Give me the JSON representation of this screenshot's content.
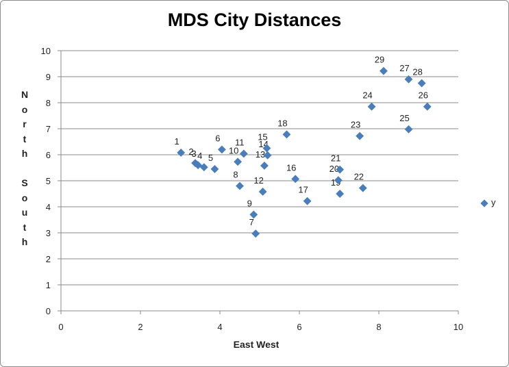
{
  "chart_data": {
    "type": "scatter",
    "title": "MDS City Distances",
    "xlabel": "East West",
    "ylabel": "North\n\nSouth",
    "xlim": [
      0,
      10
    ],
    "ylim": [
      0,
      10
    ],
    "xticks": [
      "0",
      "2",
      "4",
      "6",
      "8",
      "10"
    ],
    "yticks": [
      "0",
      "1",
      "2",
      "3",
      "4",
      "5",
      "6",
      "7",
      "8",
      "9",
      "10"
    ],
    "grid": true,
    "legend_position": "right",
    "marker_color": "#4a7ebb",
    "series": [
      {
        "name": "y",
        "points": [
          {
            "label": "1",
            "x": 3.02,
            "y": 6.08
          },
          {
            "label": "2",
            "x": 3.38,
            "y": 5.68
          },
          {
            "label": "3",
            "x": 3.45,
            "y": 5.6
          },
          {
            "label": "4",
            "x": 3.6,
            "y": 5.52
          },
          {
            "label": "5",
            "x": 3.87,
            "y": 5.45
          },
          {
            "label": "6",
            "x": 4.05,
            "y": 6.2
          },
          {
            "label": "7",
            "x": 4.9,
            "y": 2.97
          },
          {
            "label": "8",
            "x": 4.5,
            "y": 4.8
          },
          {
            "label": "9",
            "x": 4.85,
            "y": 3.7
          },
          {
            "label": "10",
            "x": 4.45,
            "y": 5.73
          },
          {
            "label": "11",
            "x": 4.6,
            "y": 6.04
          },
          {
            "label": "12",
            "x": 5.08,
            "y": 4.58
          },
          {
            "label": "13",
            "x": 5.12,
            "y": 5.58
          },
          {
            "label": "14",
            "x": 5.2,
            "y": 5.98
          },
          {
            "label": "15",
            "x": 5.18,
            "y": 6.25
          },
          {
            "label": "16",
            "x": 5.9,
            "y": 5.07
          },
          {
            "label": "17",
            "x": 6.2,
            "y": 4.22
          },
          {
            "label": "18",
            "x": 5.68,
            "y": 6.78
          },
          {
            "label": "19",
            "x": 7.02,
            "y": 4.5
          },
          {
            "label": "20",
            "x": 6.98,
            "y": 5.02
          },
          {
            "label": "21",
            "x": 7.02,
            "y": 5.43
          },
          {
            "label": "22",
            "x": 7.6,
            "y": 4.72
          },
          {
            "label": "23",
            "x": 7.52,
            "y": 6.72
          },
          {
            "label": "24",
            "x": 7.82,
            "y": 7.85
          },
          {
            "label": "25",
            "x": 8.75,
            "y": 6.98
          },
          {
            "label": "26",
            "x": 9.22,
            "y": 7.85
          },
          {
            "label": "27",
            "x": 8.75,
            "y": 8.9
          },
          {
            "label": "28",
            "x": 9.08,
            "y": 8.75
          },
          {
            "label": "29",
            "x": 8.12,
            "y": 9.22
          }
        ]
      }
    ]
  }
}
